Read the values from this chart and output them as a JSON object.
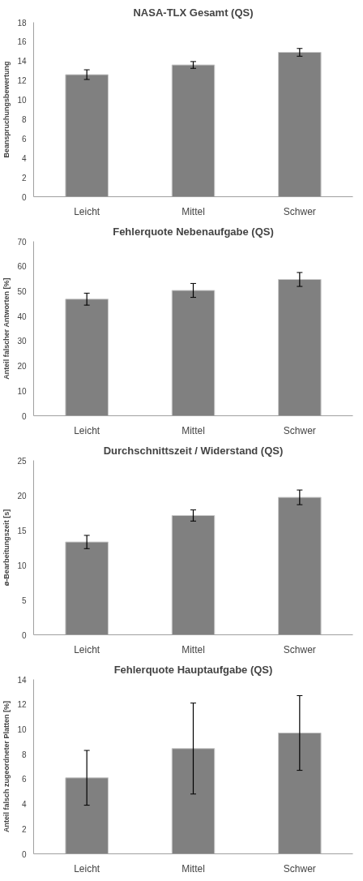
{
  "chart_data": [
    {
      "type": "bar",
      "title": "NASA-TLX Gesamt (QS)",
      "ylabel": "Beanspruchungsbewertung",
      "categories": [
        "Leicht",
        "Mittel",
        "Schwer"
      ],
      "values": [
        12.6,
        13.6,
        14.9
      ],
      "errors": [
        0.5,
        0.35,
        0.4
      ],
      "color": "#808080",
      "ylim": [
        0,
        18
      ],
      "yticks": [
        0,
        2,
        4,
        6,
        8,
        10,
        12,
        14,
        16,
        18
      ],
      "grid": false
    },
    {
      "type": "bar",
      "title": "Fehlerquote Nebenaufgabe (QS)",
      "ylabel": "Anteil falscher Antworten [%]",
      "categories": [
        "Leicht",
        "Mittel",
        "Schwer"
      ],
      "values": [
        46.8,
        50.3,
        54.7
      ],
      "errors": [
        2.4,
        2.8,
        2.8
      ],
      "color": "#808080",
      "ylim": [
        0,
        70
      ],
      "yticks": [
        0,
        10,
        20,
        30,
        40,
        50,
        60,
        70
      ],
      "grid": false
    },
    {
      "type": "bar",
      "title": "Durchschnittszeit / Widerstand (QS)",
      "ylabel": "ø-Bearbeitungszeit [s]",
      "categories": [
        "Leicht",
        "Mittel",
        "Schwer"
      ],
      "values": [
        13.3,
        17.1,
        19.7
      ],
      "errors": [
        0.95,
        0.8,
        1.05
      ],
      "color": "#808080",
      "ylim": [
        0,
        25
      ],
      "yticks": [
        0,
        5,
        10,
        15,
        20,
        25
      ],
      "grid": false
    },
    {
      "type": "bar",
      "title": "Fehlerquote Hauptaufgabe (QS)",
      "ylabel": "Anteil falsch zugeordneter Platten [%]",
      "categories": [
        "Leicht",
        "Mittel",
        "Schwer"
      ],
      "values": [
        6.1,
        8.45,
        9.7
      ],
      "errors": [
        2.2,
        3.65,
        3.0
      ],
      "color": "#808080",
      "ylim": [
        0,
        14
      ],
      "yticks": [
        0,
        2,
        4,
        6,
        8,
        10,
        12,
        14
      ],
      "grid": false
    }
  ]
}
